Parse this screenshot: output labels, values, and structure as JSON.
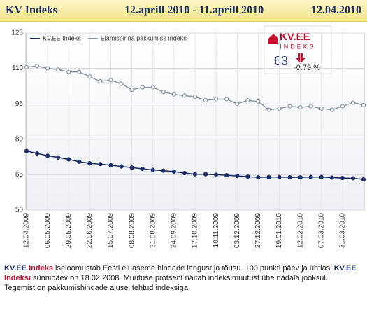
{
  "header": {
    "title": "KV Indeks",
    "period": "12.aprill 2010 - 11.aprill 2010",
    "date": "12.04.2010"
  },
  "badge": {
    "brand": "KV.EE",
    "sub": "INDEKS",
    "value": "63",
    "change": "-0.79 %"
  },
  "chart_data": {
    "type": "line",
    "categories": [
      "12.04.2009",
      null,
      "06.05.2009",
      null,
      "29.05.2009",
      null,
      "22.06.2009",
      null,
      "15.07.2009",
      null,
      "08.08.2009",
      null,
      "31.08.2009",
      null,
      "24.09.2009",
      null,
      "17.10.2009",
      null,
      "10.11.2009",
      null,
      "03.12.2009",
      null,
      "27.12.2009",
      null,
      "19.01.2010",
      null,
      "12.02.2010",
      null,
      "07.03.2010",
      null,
      "31.03.2010",
      null,
      null
    ],
    "series": [
      {
        "name": "KV.EE Indeks",
        "color": "#1c2e6a",
        "values": [
          75,
          74,
          73,
          72.3,
          71.5,
          70.5,
          69.8,
          69.5,
          69,
          68.5,
          68,
          67.5,
          67,
          66.7,
          66.3,
          65.7,
          65.2,
          65.2,
          65,
          64.8,
          64.5,
          64.2,
          63.9,
          64,
          64,
          63.9,
          63.9,
          64,
          64,
          63.8,
          63.6,
          63.5,
          63
        ]
      },
      {
        "name": "Elamispinna pakkumise indeks",
        "color": "#8a93a6",
        "values": [
          110.5,
          111,
          110,
          109.5,
          108.5,
          108.5,
          106.5,
          104.5,
          105,
          103.5,
          101,
          102,
          102,
          100,
          99,
          98.5,
          98,
          96.5,
          97,
          97,
          95,
          96.5,
          96,
          92.5,
          93,
          94,
          93.5,
          94,
          93,
          92.5,
          94,
          95.5,
          94.5
        ]
      }
    ],
    "ylim": [
      50,
      125
    ],
    "yticks": [
      50,
      65,
      80,
      95,
      110,
      125
    ],
    "grid": true
  },
  "footer": {
    "p1": "KV.EE",
    "p2": "Indeks",
    "p3": " iseloomustab Eesti eluaseme hindade langust ja tõusu. 100 punkti päev ja ühtlasi ",
    "p4": "KV.EE",
    "p5": "Indeksi",
    "p6": " sünnipäev on 18.02.2008. Muutuse protsent näitab indeksimuutust ühe nädala jooksul.",
    "p7": "Tegemist on pakkumishindade alusel tehtud indeksiga."
  }
}
